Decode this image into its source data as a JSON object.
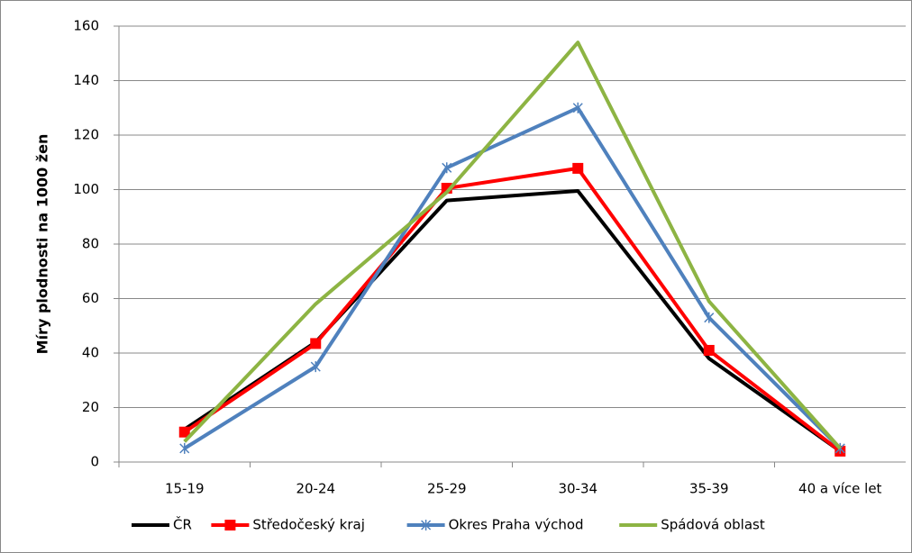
{
  "chart_data": {
    "type": "line",
    "y_label": "Míry plodnosti na 1000 žen",
    "categories": [
      "15-19",
      "20-24",
      "25-29",
      "30-34",
      "35-39",
      "40 a více let"
    ],
    "series": [
      {
        "name": "ČR",
        "color": "#000000",
        "marker": null,
        "values": [
          12,
          44,
          96,
          99.5,
          38,
          4
        ]
      },
      {
        "name": "Středočeský kraj",
        "color": "#ff0000",
        "marker": "square",
        "values": [
          11,
          43.5,
          100.5,
          107.8,
          41,
          4
        ]
      },
      {
        "name": "Okres Praha východ",
        "color": "#4f81bd",
        "marker": "star",
        "values": [
          5,
          35,
          108,
          130,
          53,
          5
        ]
      },
      {
        "name": "Spádová oblast",
        "color": "#8db443",
        "marker": null,
        "values": [
          7.5,
          58,
          99,
          154,
          59,
          5
        ]
      }
    ],
    "ylim": [
      0,
      160
    ],
    "yticks": [
      0,
      20,
      40,
      60,
      80,
      100,
      120,
      140,
      160
    ],
    "grid": true,
    "legend": "bottom"
  }
}
